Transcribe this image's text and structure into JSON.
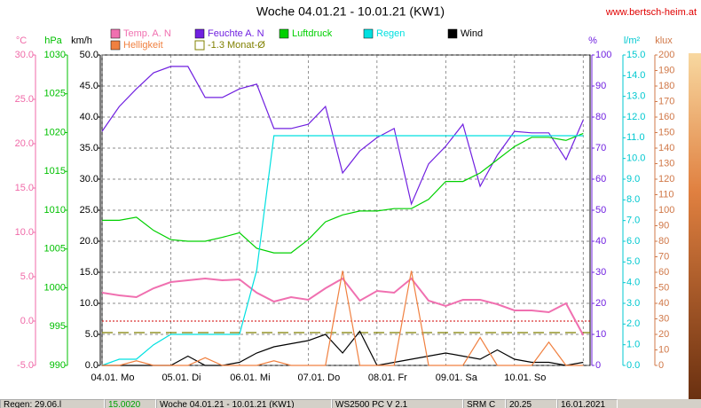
{
  "chart_data": {
    "type": "line",
    "title": "Woche 04.01.21 - 10.01.21 (KW1)",
    "source": "www.bertsch-heim.at",
    "x": [
      0,
      0.25,
      0.5,
      0.75,
      1,
      1.25,
      1.5,
      1.75,
      2,
      2.25,
      2.5,
      2.75,
      3,
      3.25,
      3.5,
      3.75,
      4,
      4.25,
      4.5,
      4.75,
      5,
      5.25,
      5.5,
      5.75,
      6,
      6.25,
      6.5,
      6.75,
      7
    ],
    "xlim": [
      0,
      7.1
    ],
    "xticks": [
      {
        "value": 0,
        "label": "04.01. Mo"
      },
      {
        "value": 1,
        "label": "05.01. Di"
      },
      {
        "value": 2,
        "label": "06.01. Mi"
      },
      {
        "value": 3,
        "label": "07.01. Do"
      },
      {
        "value": 4,
        "label": "08.01. Fr"
      },
      {
        "value": 5,
        "label": "09.01. Sa"
      },
      {
        "value": 6,
        "label": "10.01. So"
      },
      7
    ],
    "grid": true,
    "grid_axis": "wind",
    "y_axes": [
      {
        "id": "temp",
        "label": "°C",
        "side": "left",
        "color": "#f06aa8",
        "lim": [
          -5,
          30
        ],
        "ticks": [
          {
            "value": -5,
            "label": "-5.0"
          },
          {
            "value": 0,
            "label": "0.0"
          },
          {
            "value": 5,
            "label": "5.0"
          },
          {
            "value": 10,
            "label": "10.0"
          },
          {
            "value": 15,
            "label": "15.0"
          },
          {
            "value": 20,
            "label": "20.0"
          },
          {
            "value": 25,
            "label": "25.0"
          },
          {
            "value": 30,
            "label": "30.0"
          }
        ]
      },
      {
        "id": "press",
        "label": "hPa",
        "side": "left",
        "color": "#00c000",
        "lim": [
          990,
          1030
        ],
        "ticks": [
          990,
          995,
          1000,
          1005,
          1010,
          1015,
          1020,
          1025,
          1030
        ]
      },
      {
        "id": "wind",
        "label": "km/h",
        "side": "left",
        "color": "#000000",
        "lim": [
          0,
          50
        ],
        "ticks": [
          {
            "value": 0,
            "label": "0.0"
          },
          {
            "value": 5,
            "label": "5.0"
          },
          {
            "value": 10,
            "label": "10.0"
          },
          {
            "value": 15,
            "label": "15.0"
          },
          {
            "value": 20,
            "label": "20.0"
          },
          {
            "value": 25,
            "label": "25.0"
          },
          {
            "value": 30,
            "label": "30.0"
          },
          {
            "value": 35,
            "label": "35.0"
          },
          {
            "value": 40,
            "label": "40.0"
          },
          {
            "value": 45,
            "label": "45.0"
          },
          {
            "value": 50,
            "label": "50.0"
          }
        ]
      },
      {
        "id": "hum",
        "label": "%",
        "side": "right",
        "color": "#7020e0",
        "lim": [
          0,
          100
        ],
        "ticks": [
          0,
          10,
          20,
          30,
          40,
          50,
          60,
          70,
          80,
          90,
          100
        ]
      },
      {
        "id": "rain",
        "label": "l/m²",
        "side": "right",
        "color": "#00c8d0",
        "lim": [
          0,
          15
        ],
        "ticks": [
          {
            "value": 0,
            "label": "0.0"
          },
          {
            "value": 1,
            "label": "1.0"
          },
          {
            "value": 2,
            "label": "2.0"
          },
          {
            "value": 3,
            "label": "3.0"
          },
          {
            "value": 4,
            "label": "4.0"
          },
          {
            "value": 5,
            "label": "5.0"
          },
          {
            "value": 6,
            "label": "6.0"
          },
          {
            "value": 7,
            "label": "7.0"
          },
          {
            "value": 8,
            "label": "8.0"
          },
          {
            "value": 9,
            "label": "9.0"
          },
          {
            "value": 10,
            "label": "10.0"
          },
          {
            "value": 11,
            "label": "11.0"
          },
          {
            "value": 12,
            "label": "12.0"
          },
          {
            "value": 13,
            "label": "13.0"
          },
          {
            "value": 14,
            "label": "14.0"
          },
          {
            "value": 15,
            "label": "15.0"
          }
        ]
      },
      {
        "id": "lux",
        "label": "klux",
        "side": "right",
        "color": "#d07848",
        "lim": [
          0,
          200
        ],
        "ticks": [
          0,
          10,
          20,
          30,
          40,
          50,
          60,
          70,
          80,
          90,
          100,
          110,
          120,
          130,
          140,
          150,
          160,
          170,
          180,
          190,
          200
        ]
      }
    ],
    "series": [
      {
        "name": "Temp. A. N",
        "color": "#f070b0",
        "axis": "temp",
        "values": [
          3.2,
          2.9,
          2.7,
          3.7,
          4.4,
          4.6,
          4.8,
          4.6,
          4.7,
          3.2,
          2.2,
          2.7,
          2.4,
          3.7,
          4.8,
          2.3,
          3.4,
          3.2,
          4.8,
          2.3,
          1.7,
          2.4,
          2.4,
          1.9,
          1.2,
          1.2,
          1.0,
          2.0,
          -1.6
        ]
      },
      {
        "name": "Feuchte A. N",
        "color": "#7020e0",
        "axis": "hum",
        "values": [
          75.4,
          83.4,
          89.1,
          94.3,
          96.3,
          96.3,
          86.3,
          86.3,
          89.1,
          90.6,
          76.3,
          76.3,
          77.7,
          83.4,
          62.0,
          69.1,
          73.4,
          76.3,
          52.0,
          64.9,
          70.6,
          77.7,
          57.7,
          67.7,
          75.4,
          74.9,
          74.9,
          66.3,
          79.1
        ]
      },
      {
        "name": "Luftdruck",
        "color": "#00d000",
        "axis": "press",
        "values": [
          1008.7,
          1008.7,
          1009.1,
          1007.4,
          1006.2,
          1006.0,
          1006.0,
          1006.5,
          1007.1,
          1005.1,
          1004.5,
          1004.5,
          1006.2,
          1008.5,
          1009.4,
          1009.9,
          1009.9,
          1010.2,
          1010.2,
          1011.4,
          1013.7,
          1013.7,
          1014.8,
          1016.5,
          1018.2,
          1019.4,
          1019.4,
          1019.0,
          1019.9
        ]
      },
      {
        "name": "Regen",
        "color": "#00e0e0",
        "axis": "rain",
        "values": [
          0.0,
          0.3,
          0.3,
          1.0,
          1.5,
          1.5,
          1.5,
          1.5,
          1.5,
          4.6,
          11.1,
          11.1,
          11.1,
          11.1,
          11.1,
          11.1,
          11.1,
          11.1,
          11.1,
          11.1,
          11.1,
          11.1,
          11.1,
          11.1,
          11.1,
          11.1,
          11.1,
          11.1,
          11.1
        ]
      },
      {
        "name": "Wind",
        "color": "#000000",
        "axis": "wind",
        "values": [
          0,
          0,
          0,
          0,
          0,
          1.5,
          0,
          0,
          0.5,
          2,
          3,
          3.5,
          4,
          5,
          2,
          5.5,
          0,
          0.5,
          1,
          1.5,
          2,
          1.5,
          1,
          2.5,
          1,
          0.5,
          0.5,
          0,
          0.5
        ]
      },
      {
        "name": "Helligkeit",
        "color": "#f08040",
        "axis": "lux",
        "values": [
          0,
          0,
          3,
          0,
          0,
          0,
          5,
          0,
          0,
          0,
          3,
          0,
          0,
          0,
          61,
          0,
          0,
          0,
          61,
          0,
          0,
          0,
          18,
          0,
          0,
          0,
          15,
          0,
          0
        ]
      }
    ],
    "reference_lines": [
      {
        "value": 0,
        "axis": "temp",
        "color": "#d00000",
        "style": "dotted"
      },
      {
        "name": "-1.3 Monat-Ø",
        "value": -1.3,
        "axis": "temp",
        "color": "#808000",
        "style": "dashed"
      }
    ]
  },
  "status_bar": [
    "Regen: 29.06.l",
    "15.0020",
    "Woche 04.01.21 - 10.01.21 (KW1)",
    "WS2500 PC V 2.1",
    "SRM C",
    "20.25",
    "16.01.2021"
  ]
}
